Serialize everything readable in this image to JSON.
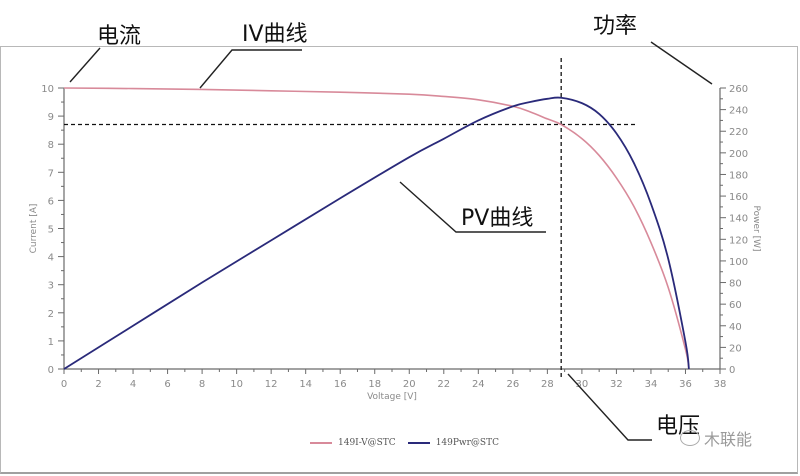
{
  "annotations": {
    "current": "电流",
    "iv_curve": "IV曲线",
    "power": "功率",
    "pv_curve": "PV曲线",
    "voltage": "电压"
  },
  "legend": [
    {
      "label": "149I-V@STC",
      "color": "#d88a9a"
    },
    {
      "label": "149Pwr@STC",
      "color": "#2a2a7a"
    }
  ],
  "watermark": "木联能",
  "axes": {
    "x_label": "Voltage [V]",
    "y_left_label": "Current [A]",
    "y_right_label": "Power [W]",
    "x_ticks": [
      "0",
      "2",
      "4",
      "6",
      "8",
      "10",
      "12",
      "14",
      "16",
      "18",
      "20",
      "22",
      "24",
      "26",
      "28",
      "30",
      "32",
      "34",
      "36",
      "38"
    ],
    "y_left_ticks": [
      "0",
      "1",
      "2",
      "3",
      "4",
      "5",
      "6",
      "7",
      "8",
      "9",
      "10"
    ],
    "y_right_ticks": [
      "0",
      "20",
      "40",
      "60",
      "80",
      "100",
      "120",
      "140",
      "160",
      "180",
      "200",
      "220",
      "240",
      "260"
    ]
  },
  "chart_data": {
    "type": "line",
    "title": "",
    "xlabel": "Voltage [V]",
    "ylabel": "Current [A]",
    "y2label": "Power [W]",
    "xlim": [
      0,
      38
    ],
    "ylim": [
      0,
      10
    ],
    "y2lim": [
      0,
      260
    ],
    "grid": false,
    "legend_position": "bottom",
    "series": [
      {
        "name": "149I-V@STC",
        "axis": "left",
        "color": "#d88a9a",
        "x": [
          0,
          4,
          8,
          12,
          16,
          20,
          22,
          24,
          26,
          27,
          28,
          28.8,
          30,
          31,
          32,
          33,
          34,
          35,
          36,
          36.2
        ],
        "values": [
          10.0,
          9.98,
          9.95,
          9.9,
          9.85,
          9.78,
          9.7,
          9.58,
          9.35,
          9.15,
          8.9,
          8.7,
          8.2,
          7.6,
          6.8,
          5.8,
          4.5,
          2.9,
          0.7,
          0.0
        ]
      },
      {
        "name": "149Pwr@STC",
        "axis": "right",
        "color": "#2a2a7a",
        "x": [
          0,
          4,
          8,
          12,
          16,
          20,
          22,
          24,
          26,
          27,
          28,
          28.8,
          30,
          31,
          32,
          33,
          34,
          35,
          36,
          36.2
        ],
        "values": [
          0,
          40,
          80,
          119,
          158,
          196,
          213,
          230,
          243,
          247,
          250,
          251,
          246,
          236,
          218,
          191,
          153,
          102,
          25,
          0
        ]
      }
    ],
    "annotations": [
      {
        "text": "电流",
        "target": "Current axis"
      },
      {
        "text": "IV曲线",
        "target": "I-V curve"
      },
      {
        "text": "功率",
        "target": "Power axis"
      },
      {
        "text": "PV曲线",
        "target": "P-V curve"
      },
      {
        "text": "电压",
        "target": "Voltage at MPP (~28.8 V)"
      }
    ],
    "reference_lines": [
      {
        "type": "vertical",
        "x": 28.8,
        "style": "dashed"
      },
      {
        "type": "horizontal",
        "y": 8.7,
        "style": "dashed"
      }
    ]
  }
}
